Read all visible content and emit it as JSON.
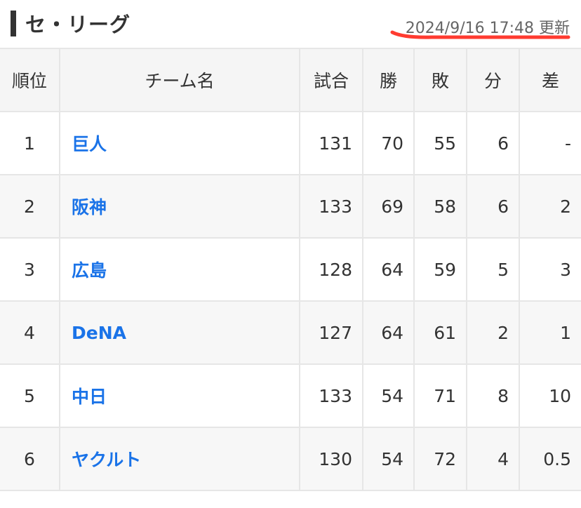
{
  "header": {
    "title": "セ・リーグ",
    "updated": "2024/9/16 17:48 更新",
    "underline_color": "#ff3b30"
  },
  "table": {
    "columns": [
      "順位",
      "チーム名",
      "試合",
      "勝",
      "敗",
      "分",
      "差"
    ],
    "rows": [
      {
        "rank": "1",
        "team": "巨人",
        "games": "131",
        "wins": "70",
        "losses": "55",
        "draws": "6",
        "gb": "-"
      },
      {
        "rank": "2",
        "team": "阪神",
        "games": "133",
        "wins": "69",
        "losses": "58",
        "draws": "6",
        "gb": "2"
      },
      {
        "rank": "3",
        "team": "広島",
        "games": "128",
        "wins": "64",
        "losses": "59",
        "draws": "5",
        "gb": "3"
      },
      {
        "rank": "4",
        "team": "DeNA",
        "games": "127",
        "wins": "64",
        "losses": "61",
        "draws": "2",
        "gb": "1"
      },
      {
        "rank": "5",
        "team": "中日",
        "games": "133",
        "wins": "54",
        "losses": "71",
        "draws": "8",
        "gb": "10"
      },
      {
        "rank": "6",
        "team": "ヤクルト",
        "games": "130",
        "wins": "54",
        "losses": "72",
        "draws": "4",
        "gb": "0.5"
      }
    ]
  }
}
